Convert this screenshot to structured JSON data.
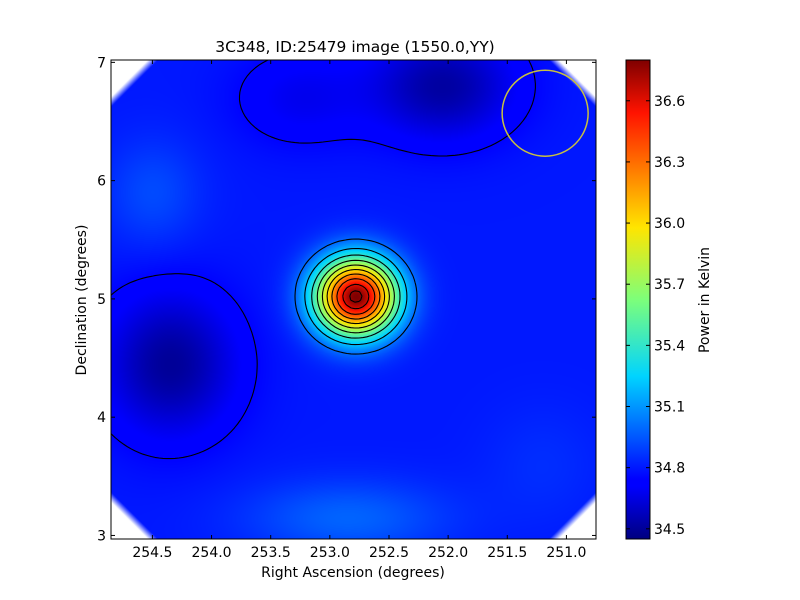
{
  "chart_data": {
    "type": "heatmap",
    "title": "3C348, ID:25479 image (1550.0,YY)",
    "xlabel": "Right Ascension (degrees)",
    "ylabel": "Declination (degrees)",
    "xlim": [
      254.85,
      250.75
    ],
    "ylim": [
      2.97,
      7.02
    ],
    "x_ticks": [
      "254.5",
      "254.0",
      "253.5",
      "253.0",
      "252.5",
      "252.0",
      "251.5",
      "251.0"
    ],
    "x_tick_values": [
      254.5,
      254.0,
      253.5,
      253.0,
      252.5,
      252.0,
      251.5,
      251.0
    ],
    "y_ticks": [
      "3",
      "4",
      "5",
      "6",
      "7"
    ],
    "y_tick_values": [
      3,
      4,
      5,
      6,
      7
    ],
    "colorbar": {
      "label": "Power in Kelvin",
      "range": [
        34.45,
        36.8
      ],
      "ticks": [
        "34.5",
        "34.8",
        "35.1",
        "35.4",
        "35.7",
        "36.0",
        "36.3",
        "36.6"
      ],
      "tick_values": [
        34.5,
        34.8,
        35.1,
        35.4,
        35.7,
        36.0,
        36.3,
        36.6
      ],
      "colormap": "jet"
    },
    "peak": {
      "ra": 252.78,
      "dec": 5.02,
      "value": 36.8
    },
    "background_level": 34.8,
    "contour_levels": [
      34.75,
      35.0,
      35.2,
      35.4,
      35.6,
      35.8,
      36.0,
      36.2,
      36.4,
      36.6,
      36.75
    ],
    "beam_circle": {
      "ra_center": 251.18,
      "dec_center": 6.57,
      "color": "#c8c040"
    }
  }
}
